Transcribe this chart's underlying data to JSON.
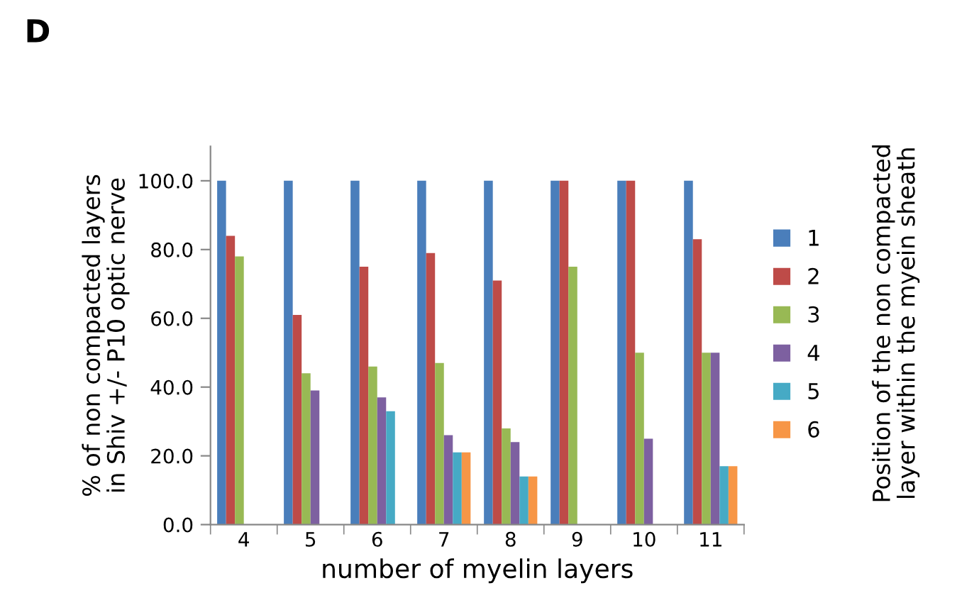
{
  "chart_data": {
    "type": "bar",
    "xlabel": "number of myelin layers",
    "ylabel": "% of non compacted layers\nin Shiv +/- P10 optic nerve",
    "legend_title": "Position of the non compacted\nlayer within the myein sheath",
    "annotations": [
      "D"
    ],
    "categories": [
      "4",
      "5",
      "6",
      "7",
      "8",
      "9",
      "10",
      "11"
    ],
    "series": [
      {
        "name": "1",
        "color": "#4a7ebb",
        "values": [
          100,
          100,
          100,
          100,
          100,
          100,
          100,
          100
        ]
      },
      {
        "name": "2",
        "color": "#be4b48",
        "values": [
          84,
          61,
          75,
          79,
          71,
          100,
          100,
          83
        ]
      },
      {
        "name": "3",
        "color": "#98b954",
        "values": [
          78,
          44,
          46,
          47,
          28,
          75,
          50,
          50
        ]
      },
      {
        "name": "4",
        "color": "#7d60a0",
        "values": [
          null,
          39,
          37,
          26,
          24,
          null,
          25,
          50
        ]
      },
      {
        "name": "5",
        "color": "#46aac5",
        "values": [
          null,
          null,
          33,
          21,
          14,
          null,
          null,
          17
        ]
      },
      {
        "name": "6",
        "color": "#f79646",
        "values": [
          null,
          null,
          null,
          21,
          14,
          null,
          null,
          17
        ]
      }
    ],
    "ylim": [
      0,
      110
    ],
    "yticks": [
      {
        "value": 0,
        "label": "0.0"
      },
      {
        "value": 20,
        "label": "20.0"
      },
      {
        "value": 40,
        "label": "40.0"
      },
      {
        "value": 60,
        "label": "60.0"
      },
      {
        "value": 80,
        "label": "80.0"
      },
      {
        "value": 100,
        "label": "100.0"
      }
    ],
    "grid": false,
    "legend": "right"
  }
}
